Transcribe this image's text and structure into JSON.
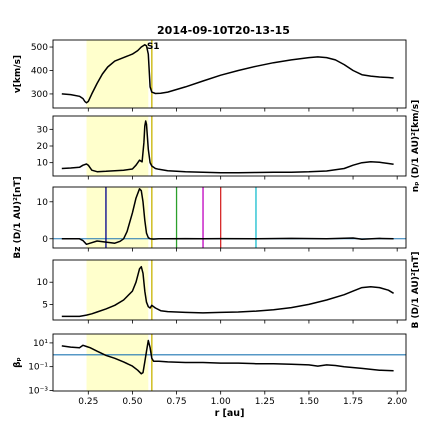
{
  "figure": {
    "title": "2014-09-10T20-13-15"
  },
  "chart_data": {
    "type": "line",
    "title": "2014-09-10T20-13-15",
    "xlabel": "r [au]",
    "xlim": [
      0.05,
      2.05
    ],
    "xticks": [
      0.25,
      0.5,
      0.75,
      1.0,
      1.25,
      1.5,
      1.75,
      2.0
    ],
    "xticklabels": [
      "0.25",
      "0.50",
      "0.75",
      "1.00",
      "1.25",
      "1.50",
      "1.75",
      "2.00"
    ],
    "shaded_region": {
      "x": [
        0.24,
        0.59
      ],
      "color": "#ffffcc"
    },
    "shock": {
      "x": 0.61,
      "label": "S1",
      "color": "#c8b400"
    },
    "panels": [
      {
        "id": "v",
        "ylabel": "v[km/s]",
        "label_side": "left",
        "yscale": "linear",
        "ylim": [
          240,
          530
        ],
        "yticks": [
          300,
          400,
          500
        ],
        "yticklabels": [
          "300",
          "400",
          "500"
        ],
        "annotation": "S1",
        "series": [
          {
            "color": "#000000",
            "x": [
              0.1,
              0.15,
              0.2,
              0.22,
              0.23,
              0.24,
              0.25,
              0.27,
              0.3,
              0.33,
              0.36,
              0.4,
              0.45,
              0.5,
              0.53,
              0.55,
              0.57,
              0.58,
              0.59,
              0.6,
              0.61,
              0.63,
              0.66,
              0.7,
              0.8,
              0.9,
              1.0,
              1.1,
              1.2,
              1.3,
              1.4,
              1.5,
              1.55,
              1.6,
              1.65,
              1.7,
              1.75,
              1.8,
              1.85,
              1.9,
              1.95,
              1.98
            ],
            "y": [
              300,
              297,
              290,
              280,
              268,
              262,
              268,
              300,
              345,
              385,
              415,
              440,
              455,
              470,
              485,
              500,
              510,
              505,
              470,
              330,
              308,
              302,
              303,
              308,
              330,
              355,
              380,
              400,
              418,
              433,
              445,
              455,
              458,
              455,
              445,
              425,
              400,
              382,
              376,
              372,
              370,
              368
            ]
          }
        ],
        "hlines": [],
        "vlines": []
      },
      {
        "id": "np",
        "ylabel": "nₚ (D/1 AU)²[km/s]",
        "label_side": "right",
        "yscale": "linear",
        "ylim": [
          2,
          38
        ],
        "yticks": [
          10,
          20,
          30
        ],
        "yticklabels": [
          "10",
          "20",
          "30"
        ],
        "series": [
          {
            "color": "#000000",
            "x": [
              0.1,
              0.15,
              0.2,
              0.22,
              0.24,
              0.25,
              0.27,
              0.3,
              0.35,
              0.4,
              0.45,
              0.5,
              0.52,
              0.54,
              0.555,
              0.565,
              0.57,
              0.575,
              0.58,
              0.59,
              0.6,
              0.61,
              0.63,
              0.65,
              0.7,
              0.8,
              0.9,
              1.0,
              1.1,
              1.2,
              1.3,
              1.4,
              1.5,
              1.6,
              1.7,
              1.75,
              1.8,
              1.85,
              1.9,
              1.95,
              1.98
            ],
            "y": [
              6.5,
              6.8,
              7.2,
              8.5,
              9.2,
              8.5,
              5.5,
              4.6,
              4.8,
              5.2,
              5.5,
              6.2,
              8.5,
              11.5,
              10.5,
              22,
              32,
              35,
              33,
              18,
              10,
              8,
              6.5,
              6,
              5.2,
              4.5,
              4.2,
              4,
              4,
              4.1,
              4.2,
              4.3,
              4.5,
              5,
              6.5,
              8.5,
              10,
              10.5,
              10.2,
              9.5,
              9
            ]
          }
        ],
        "hlines": [],
        "vlines": []
      },
      {
        "id": "bz",
        "ylabel": "Bz (D/1 AU)²[nT]",
        "label_side": "left",
        "yscale": "linear",
        "ylim": [
          -2.5,
          14
        ],
        "yticks": [
          0,
          10
        ],
        "yticklabels": [
          "0",
          "10"
        ],
        "series": [
          {
            "color": "#000000",
            "x": [
              0.1,
              0.2,
              0.22,
              0.24,
              0.26,
              0.3,
              0.35,
              0.4,
              0.43,
              0.45,
              0.47,
              0.5,
              0.52,
              0.54,
              0.55,
              0.56,
              0.57,
              0.58,
              0.59,
              0.6,
              0.62,
              0.65,
              0.7,
              0.8,
              0.9,
              1.0,
              1.2,
              1.4,
              1.6,
              1.7,
              1.75,
              1.8,
              1.9,
              1.98
            ],
            "y": [
              0,
              0,
              -0.5,
              -1.5,
              -1.2,
              -0.6,
              -0.9,
              -1.2,
              -0.7,
              0,
              2,
              7,
              11,
              13.5,
              13,
              10,
              5,
              1.5,
              0.3,
              0,
              -0.1,
              0,
              0,
              0.05,
              0,
              0.05,
              0,
              0.1,
              0,
              0.15,
              0.2,
              -0.15,
              0.1,
              0
            ]
          }
        ],
        "hlines": [
          {
            "y": 0,
            "color": "#1f77b4"
          }
        ],
        "vlines": [
          {
            "x": 0.35,
            "color": "#00008b"
          },
          {
            "x": 0.75,
            "color": "#2ca02c"
          },
          {
            "x": 0.9,
            "color": "#bf00bf"
          },
          {
            "x": 1.0,
            "color": "#d62728"
          },
          {
            "x": 1.2,
            "color": "#17becf"
          }
        ]
      },
      {
        "id": "b",
        "ylabel": "B (D/1 AU)²[nT]",
        "label_side": "right",
        "yscale": "linear",
        "ylim": [
          1.5,
          15
        ],
        "yticks": [
          5,
          10
        ],
        "yticklabels": [
          "5",
          "10"
        ],
        "series": [
          {
            "color": "#000000",
            "x": [
              0.1,
              0.15,
              0.2,
              0.24,
              0.27,
              0.3,
              0.35,
              0.4,
              0.45,
              0.5,
              0.52,
              0.54,
              0.55,
              0.56,
              0.57,
              0.58,
              0.59,
              0.6,
              0.61,
              0.63,
              0.66,
              0.7,
              0.8,
              0.9,
              1.0,
              1.1,
              1.2,
              1.3,
              1.4,
              1.5,
              1.6,
              1.7,
              1.75,
              1.8,
              1.85,
              1.9,
              1.95,
              1.98
            ],
            "y": [
              2.3,
              2.3,
              2.3,
              2.6,
              2.9,
              3.3,
              4,
              4.8,
              6,
              8,
              10,
              13,
              13.5,
              12,
              8,
              5.5,
              4.5,
              4.2,
              4.8,
              4.2,
              3.6,
              3.4,
              3.2,
              3.1,
              3.2,
              3.3,
              3.5,
              3.8,
              4.3,
              5,
              6,
              7.2,
              8,
              8.8,
              9,
              8.8,
              8.2,
              7.5
            ]
          }
        ],
        "hlines": [],
        "vlines": []
      },
      {
        "id": "beta",
        "ylabel": "βₚ",
        "label_side": "left",
        "yscale": "log",
        "ylim_log10": [
          -3.05,
          1.75
        ],
        "yticks_log10": [
          -3,
          -1,
          1
        ],
        "yticklabels": [
          "10⁻³",
          "10⁻¹",
          "10¹"
        ],
        "series": [
          {
            "color": "#000000",
            "log10_y": true,
            "x": [
              0.1,
              0.15,
              0.2,
              0.22,
              0.24,
              0.26,
              0.3,
              0.35,
              0.4,
              0.45,
              0.5,
              0.53,
              0.55,
              0.56,
              0.57,
              0.58,
              0.59,
              0.6,
              0.61,
              0.62,
              0.65,
              0.7,
              0.8,
              0.9,
              1.0,
              1.1,
              1.2,
              1.3,
              1.4,
              1.5,
              1.55,
              1.6,
              1.65,
              1.7,
              1.8,
              1.9,
              1.98
            ],
            "y": [
              0.75,
              0.65,
              0.6,
              0.8,
              0.7,
              0.6,
              0.3,
              -0.05,
              -0.3,
              -0.6,
              -0.95,
              -1.3,
              -1.6,
              -1.5,
              -0.6,
              0.3,
              1.2,
              0.6,
              -0.3,
              -0.55,
              -0.55,
              -0.6,
              -0.65,
              -0.65,
              -0.7,
              -0.7,
              -0.75,
              -0.75,
              -0.8,
              -0.85,
              -0.95,
              -0.85,
              -0.9,
              -1.0,
              -1.15,
              -1.3,
              -1.35
            ]
          }
        ],
        "hlines": [
          {
            "y_log10": 0,
            "color": "#1f77b4"
          }
        ],
        "vlines": []
      }
    ]
  }
}
